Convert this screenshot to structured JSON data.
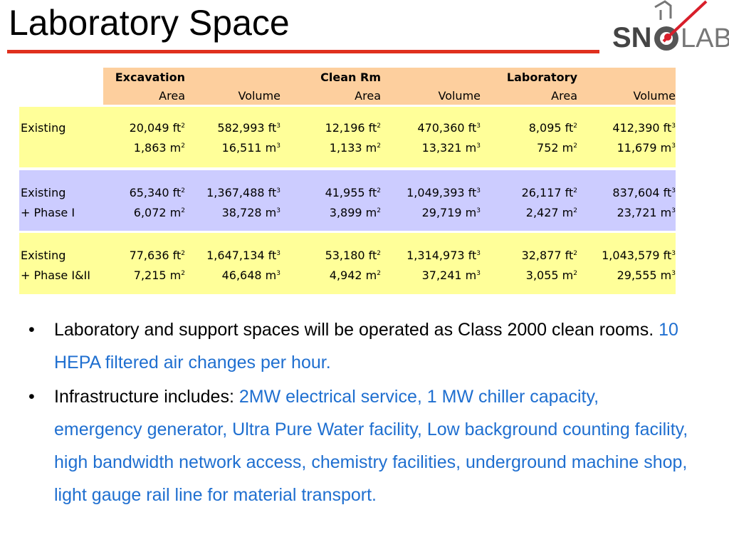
{
  "slide": {
    "title": "Laboratory Space",
    "accent_color": "#e0301e",
    "logo_text_left": "SN",
    "logo_text_right": "LAB"
  },
  "table": {
    "group_headers": [
      "Excavation",
      "Clean Rm",
      "Laboratory"
    ],
    "sub_headers": [
      "Area",
      "Volume",
      "Area",
      "Volume",
      "Area",
      "Volume"
    ],
    "rows": [
      {
        "label1": "Existing",
        "label2": "",
        "imperial": [
          "20,049 ft",
          "582,993 ft",
          "12,196 ft",
          "470,360 ft",
          "8,095 ft",
          "412,390 ft"
        ],
        "metric": [
          "1,863 m",
          "16,511 m",
          "1,133 m",
          "13,321 m",
          "752 m",
          "11,679 m"
        ]
      },
      {
        "label1": "Existing",
        "label2": "+ Phase I",
        "imperial": [
          "65,340 ft",
          "1,367,488 ft",
          "41,955 ft",
          "1,049,393 ft",
          "26,117 ft",
          "837,604 ft"
        ],
        "metric": [
          "6,072 m",
          "38,728 m",
          "3,899 m",
          "29,719 m",
          "2,427 m",
          "23,721 m"
        ]
      },
      {
        "label1": "Existing",
        "label2": "+ Phase I&II",
        "imperial": [
          "77,636 ft",
          "1,647,134 ft",
          "53,180 ft",
          "1,314,973 ft",
          "32,877 ft",
          "1,043,579 ft"
        ],
        "metric": [
          "7,215 m",
          "46,648 m",
          "4,942 m",
          "37,241 m",
          "3,055 m",
          "29,555 m"
        ]
      }
    ],
    "exp_area": "2",
    "exp_volume": "3",
    "band_colors": [
      "#ffff99",
      "#ccccff",
      "#ffff99"
    ],
    "header_color": "#fdcf9e"
  },
  "bullets": [
    {
      "plain": "Laboratory and support spaces will be operated as Class 2000 clean rooms. ",
      "highlight": "10 HEPA filtered air changes per hour."
    },
    {
      "plain": "Infrastructure includes: ",
      "highlight": "2MW electrical service, 1 MW chiller capacity, emergency generator, Ultra Pure Water facility, Low background counting facility, high bandwidth network access, chemistry facilities, underground machine shop, light gauge rail line for material transport."
    }
  ],
  "bullet_symbol": "•",
  "highlight_color": "#1f6fd0"
}
